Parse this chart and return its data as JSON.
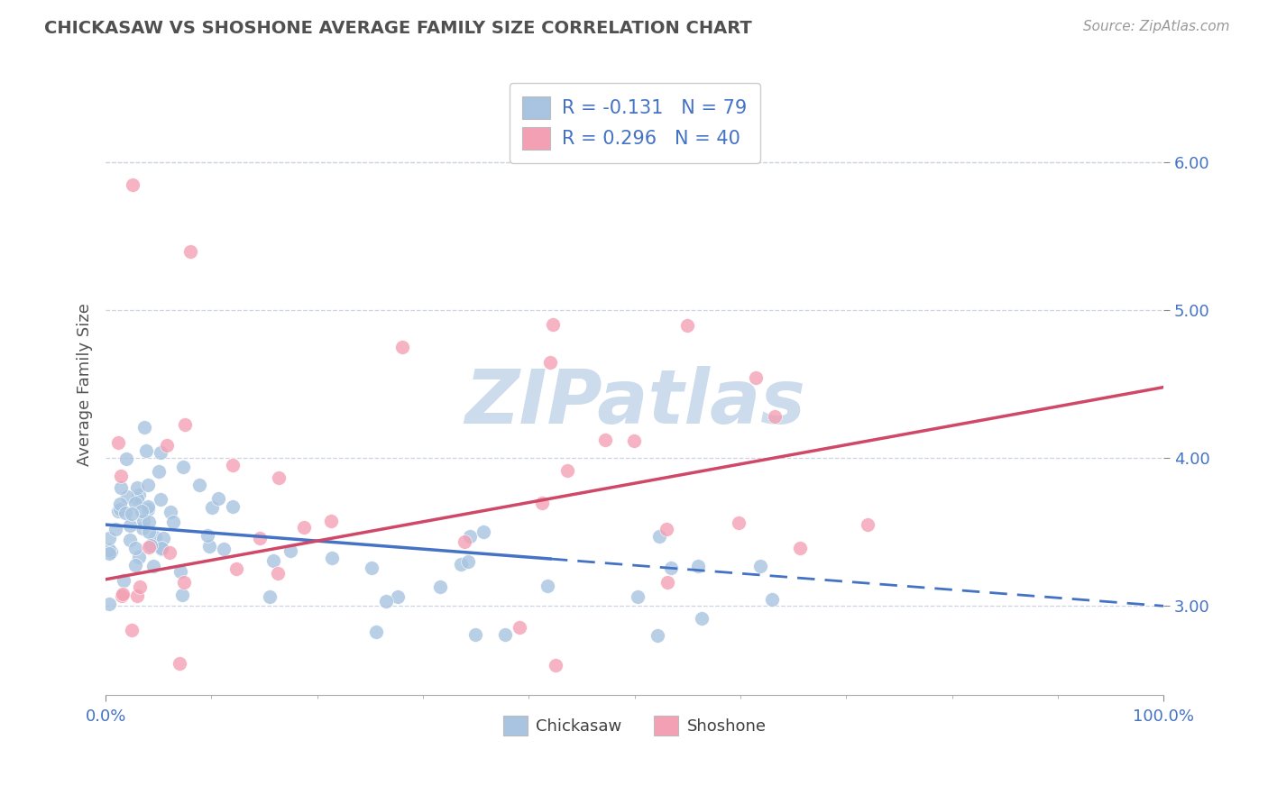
{
  "title": "CHICKASAW VS SHOSHONE AVERAGE FAMILY SIZE CORRELATION CHART",
  "source": "Source: ZipAtlas.com",
  "ylabel": "Average Family Size",
  "legend_label1": "Chickasaw",
  "legend_label2": "Shoshone",
  "legend_r1": "R = -0.131",
  "legend_n1": "N = 79",
  "legend_r2": "R = 0.296",
  "legend_n2": "N = 40",
  "color_chickasaw": "#a8c4e0",
  "color_shoshone": "#f4a0b4",
  "color_trend_chickasaw": "#4472c4",
  "color_trend_shoshone": "#d04868",
  "color_title": "#505050",
  "color_axis": "#4472c4",
  "watermark_color": "#ccdcec",
  "background": "#ffffff",
  "yticks": [
    3.0,
    4.0,
    5.0,
    6.0
  ],
  "ylim_bottom": 2.4,
  "ylim_top": 6.6,
  "xlim_left": 0,
  "xlim_right": 100,
  "chick_intercept": 3.55,
  "chick_slope": -0.0055,
  "sho_intercept": 3.18,
  "sho_slope": 0.013,
  "trend_solid_end": 42
}
